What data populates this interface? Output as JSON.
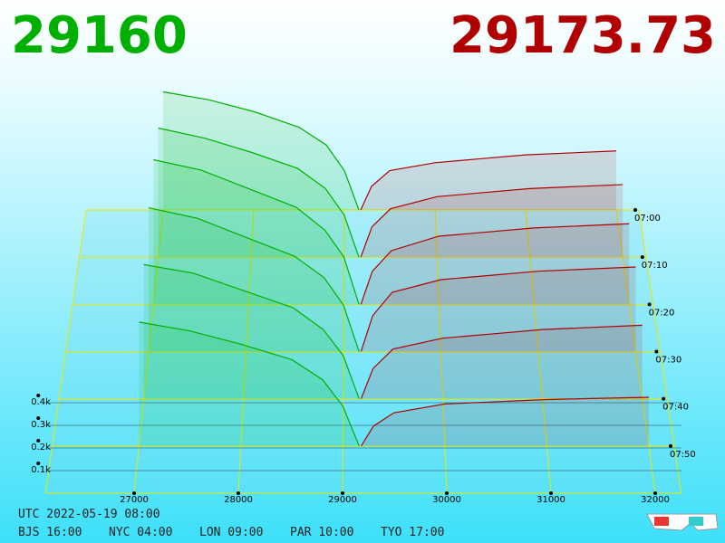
{
  "chart_data": {
    "type": "depth3d",
    "bid_price": "29160",
    "ask_price": "29173.73",
    "bid_color": "#00b000",
    "ask_color": "#b00000",
    "xlim": [
      26150,
      32250
    ],
    "xticks": [
      27000,
      28000,
      29000,
      30000,
      31000,
      32000
    ],
    "yticks": [
      {
        "value": 100,
        "label": "0.1k"
      },
      {
        "value": 200,
        "label": "0.2k"
      },
      {
        "value": 300,
        "label": "0.3k"
      },
      {
        "value": 400,
        "label": "0.4k"
      }
    ],
    "times": [
      "07:00",
      "07:10",
      "07:20",
      "07:30",
      "07:40",
      "07:50"
    ],
    "bid_prices": [
      27000,
      27500,
      28000,
      28500,
      28800,
      29000,
      29160
    ],
    "ask_prices": [
      29180,
      29300,
      29500,
      30000,
      30500,
      31000,
      32000
    ],
    "snapshots": [
      {
        "bids": [
          600,
          560,
          500,
          420,
          330,
          200,
          0
        ],
        "asks": [
          0,
          120,
          200,
          240,
          260,
          280,
          300
        ]
      },
      {
        "bids": [
          640,
          590,
          520,
          440,
          340,
          210,
          0
        ],
        "asks": [
          0,
          150,
          240,
          300,
          320,
          340,
          360
        ]
      },
      {
        "bids": [
          700,
          650,
          560,
          470,
          360,
          230,
          0
        ],
        "asks": [
          0,
          160,
          260,
          330,
          350,
          370,
          390
        ]
      },
      {
        "bids": [
          680,
          630,
          540,
          450,
          350,
          220,
          0
        ],
        "asks": [
          0,
          170,
          280,
          340,
          360,
          380,
          400
        ]
      },
      {
        "bids": [
          620,
          580,
          500,
          420,
          320,
          200,
          0
        ],
        "asks": [
          0,
          140,
          230,
          280,
          300,
          320,
          340
        ]
      },
      {
        "bids": [
          560,
          520,
          460,
          390,
          300,
          180,
          0
        ],
        "asks": [
          0,
          90,
          150,
          190,
          200,
          210,
          220
        ]
      }
    ],
    "footer": {
      "utc": "UTC 2022-05-19 08:00",
      "zones": [
        "BJS 16:00",
        "NYC 04:00",
        "LON 09:00",
        "PAR 10:00",
        "TYO 17:00"
      ]
    }
  }
}
